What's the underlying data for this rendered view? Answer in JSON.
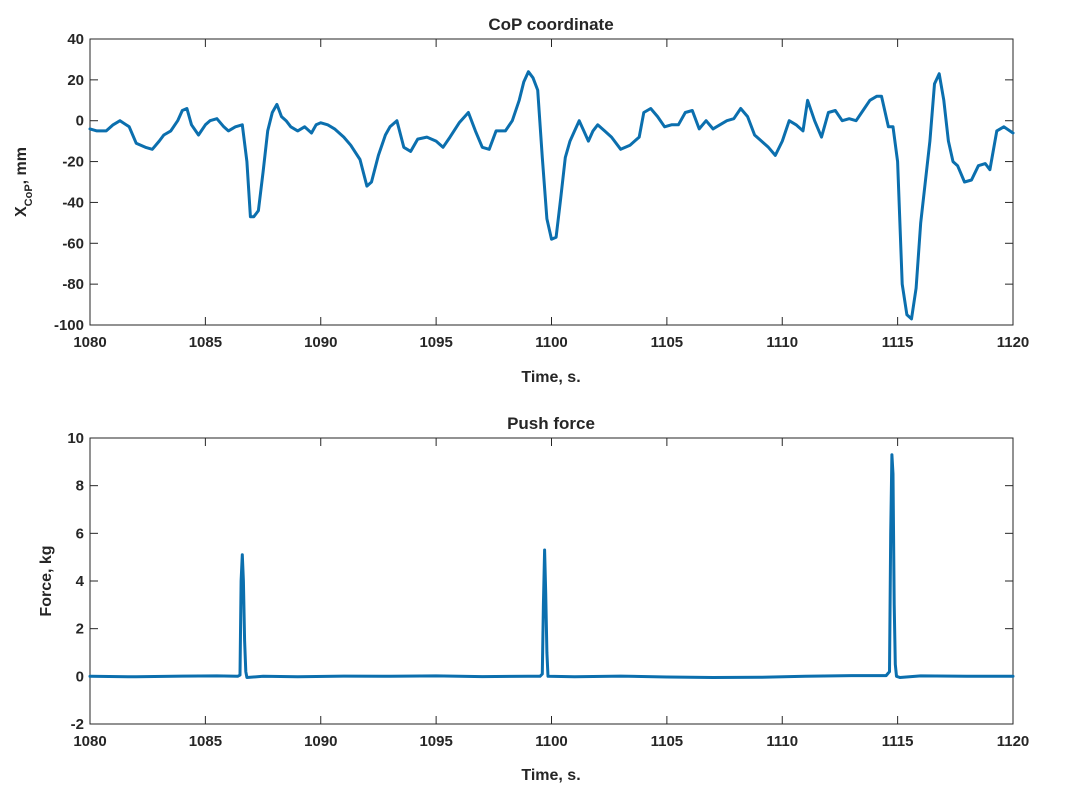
{
  "figure": {},
  "chart_data": [
    {
      "type": "line",
      "title": "CoP coordinate",
      "xlabel": "Time, s.",
      "ylabel": "X",
      "ylabel_sub": "CoP",
      "ylabel_suffix": ", mm",
      "xlim": [
        1080,
        1120
      ],
      "ylim": [
        -100,
        40
      ],
      "xticks": [
        1080,
        1085,
        1090,
        1095,
        1100,
        1105,
        1110,
        1115,
        1120
      ],
      "yticks": [
        -100,
        -80,
        -60,
        -40,
        -20,
        0,
        20,
        40
      ],
      "grid": false,
      "color": "#0b6fae",
      "series": [
        {
          "x": [
            1080.0,
            1080.3,
            1080.7,
            1081.0,
            1081.3,
            1081.7,
            1082.0,
            1082.4,
            1082.7,
            1083.0,
            1083.2,
            1083.5,
            1083.8,
            1084.0,
            1084.2,
            1084.4,
            1084.7,
            1085.0,
            1085.2,
            1085.5,
            1085.8,
            1086.0,
            1086.3,
            1086.6,
            1086.8,
            1086.95,
            1087.1,
            1087.3,
            1087.5,
            1087.7,
            1087.9,
            1088.1,
            1088.3,
            1088.5,
            1088.7,
            1089.0,
            1089.3,
            1089.6,
            1089.8,
            1090.0,
            1090.3,
            1090.6,
            1091.0,
            1091.3,
            1091.7,
            1092.0,
            1092.2,
            1092.5,
            1092.8,
            1093.0,
            1093.3,
            1093.6,
            1093.9,
            1094.2,
            1094.6,
            1095.0,
            1095.3,
            1095.6,
            1096.0,
            1096.4,
            1096.7,
            1097.0,
            1097.3,
            1097.6,
            1098.0,
            1098.3,
            1098.6,
            1098.8,
            1099.0,
            1099.2,
            1099.4,
            1099.6,
            1099.8,
            1100.0,
            1100.2,
            1100.4,
            1100.6,
            1100.8,
            1101.0,
            1101.2,
            1101.4,
            1101.6,
            1101.8,
            1102.0,
            1102.3,
            1102.6,
            1103.0,
            1103.4,
            1103.8,
            1104.0,
            1104.3,
            1104.6,
            1104.9,
            1105.2,
            1105.5,
            1105.8,
            1106.1,
            1106.4,
            1106.7,
            1107.0,
            1107.3,
            1107.6,
            1107.9,
            1108.2,
            1108.5,
            1108.8,
            1109.1,
            1109.4,
            1109.7,
            1110.0,
            1110.3,
            1110.6,
            1110.9,
            1111.1,
            1111.4,
            1111.7,
            1112.0,
            1112.3,
            1112.6,
            1112.9,
            1113.2,
            1113.5,
            1113.8,
            1114.1,
            1114.3,
            1114.6,
            1114.8,
            1115.0,
            1115.2,
            1115.4,
            1115.6,
            1115.8,
            1116.0,
            1116.2,
            1116.4,
            1116.6,
            1116.8,
            1117.0,
            1117.2,
            1117.4,
            1117.6,
            1117.9,
            1118.2,
            1118.5,
            1118.8,
            1119.0,
            1119.3,
            1119.6,
            1120.0
          ],
          "y": [
            -4,
            -5,
            -5,
            -2,
            0,
            -3,
            -11,
            -13,
            -14,
            -10,
            -7,
            -5,
            0,
            5,
            6,
            -2,
            -7,
            -2,
            0,
            1,
            -3,
            -5,
            -3,
            -2,
            -20,
            -47,
            -47,
            -44,
            -25,
            -5,
            4,
            8,
            2,
            0,
            -3,
            -5,
            -3,
            -6,
            -2,
            -1,
            -2,
            -4,
            -8,
            -12,
            -19,
            -32,
            -30,
            -17,
            -7,
            -3,
            0,
            -13,
            -15,
            -9,
            -8,
            -10,
            -13,
            -8,
            -1,
            4,
            -5,
            -13,
            -14,
            -5,
            -5,
            0,
            10,
            19,
            24,
            21,
            15,
            -18,
            -48,
            -58,
            -57,
            -38,
            -18,
            -10,
            -5,
            0,
            -5,
            -10,
            -5,
            -2,
            -5,
            -8,
            -14,
            -12,
            -8,
            4,
            6,
            2,
            -3,
            -2,
            -2,
            4,
            5,
            -4,
            0,
            -4,
            -2,
            0,
            1,
            6,
            2,
            -7,
            -10,
            -13,
            -17,
            -10,
            0,
            -2,
            -5,
            10,
            0,
            -8,
            4,
            5,
            0,
            1,
            0,
            5,
            10,
            12,
            12,
            -3,
            -3,
            -20,
            -80,
            -95,
            -97,
            -82,
            -50,
            -30,
            -10,
            18,
            23,
            10,
            -10,
            -20,
            -22,
            -30,
            -29,
            -22,
            -21,
            -24,
            -5,
            -3,
            -6
          ]
        }
      ]
    },
    {
      "type": "line",
      "title": "Push force",
      "xlabel": "Time, s.",
      "ylabel": "Force, kg",
      "xlim": [
        1080,
        1120
      ],
      "ylim": [
        -2,
        10
      ],
      "xticks": [
        1080,
        1085,
        1090,
        1095,
        1100,
        1105,
        1110,
        1115,
        1120
      ],
      "yticks": [
        -2,
        0,
        2,
        4,
        6,
        8,
        10
      ],
      "grid": false,
      "color": "#0b6fae",
      "series": [
        {
          "x": [
            1080.0,
            1082.0,
            1084.0,
            1085.5,
            1086.4,
            1086.5,
            1086.55,
            1086.6,
            1086.65,
            1086.7,
            1086.75,
            1086.8,
            1087.5,
            1089.0,
            1091.0,
            1093.0,
            1095.0,
            1097.0,
            1099.0,
            1099.5,
            1099.6,
            1099.65,
            1099.7,
            1099.75,
            1099.8,
            1099.85,
            1101.0,
            1103.0,
            1105.0,
            1107.0,
            1109.0,
            1111.0,
            1113.0,
            1114.5,
            1114.65,
            1114.7,
            1114.75,
            1114.8,
            1114.85,
            1114.9,
            1114.95,
            1115.1,
            1116.0,
            1118.0,
            1120.0
          ],
          "y": [
            0.0,
            -0.02,
            0.01,
            0.02,
            0.0,
            0.05,
            4.0,
            5.1,
            4.0,
            1.5,
            0.2,
            -0.05,
            0.0,
            -0.02,
            0.01,
            0.0,
            0.02,
            -0.01,
            0.0,
            0.0,
            0.1,
            3.0,
            5.3,
            3.5,
            1.0,
            0.0,
            -0.02,
            0.01,
            -0.03,
            -0.05,
            -0.04,
            0.0,
            0.03,
            0.03,
            0.2,
            6.0,
            9.3,
            8.5,
            3.0,
            0.5,
            0.0,
            -0.05,
            0.02,
            0.0,
            0.0
          ]
        }
      ]
    }
  ]
}
